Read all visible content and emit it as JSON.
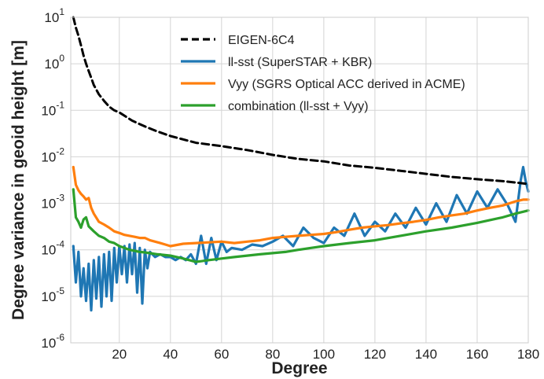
{
  "chart_data": {
    "type": "line",
    "xlabel": "Degree",
    "ylabel": "Degree variance in geoid height [m]",
    "xlim": [
      1,
      180
    ],
    "ylim": [
      1e-06,
      10
    ],
    "yscale": "log",
    "grid": true,
    "legend_placement": "top-center",
    "x_ticks": [
      "20",
      "40",
      "60",
      "80",
      "100",
      "120",
      "140",
      "160",
      "180"
    ],
    "y_ticks": [
      {
        "base": "10",
        "exp": "-6"
      },
      {
        "base": "10",
        "exp": "-5"
      },
      {
        "base": "10",
        "exp": "-4"
      },
      {
        "base": "10",
        "exp": "-3"
      },
      {
        "base": "10",
        "exp": "-2"
      },
      {
        "base": "10",
        "exp": "-1"
      },
      {
        "base": "10",
        "exp": "0"
      },
      {
        "base": "10",
        "exp": "1"
      }
    ],
    "series": [
      {
        "name": "EIGEN-6C4",
        "color": "#000000",
        "style": "dashed",
        "x": [
          2,
          3,
          4,
          5,
          6,
          7,
          8,
          9,
          10,
          12,
          14,
          16,
          18,
          20,
          25,
          30,
          35,
          40,
          50,
          60,
          70,
          80,
          90,
          100,
          110,
          120,
          130,
          140,
          150,
          160,
          170,
          175,
          180
        ],
        "y": [
          10,
          6,
          4,
          2.5,
          1.5,
          1.0,
          0.7,
          0.5,
          0.35,
          0.22,
          0.16,
          0.12,
          0.1,
          0.09,
          0.06,
          0.045,
          0.035,
          0.028,
          0.02,
          0.017,
          0.014,
          0.011,
          0.009,
          0.008,
          0.0065,
          0.0058,
          0.005,
          0.0043,
          0.0037,
          0.0033,
          0.003,
          0.0028,
          0.0026
        ]
      },
      {
        "name": "ll-sst (SuperSTAR + KBR)",
        "color": "#1f77b4",
        "style": "solid",
        "x": [
          2,
          3,
          4,
          5,
          6,
          7,
          8,
          9,
          10,
          11,
          12,
          13,
          14,
          15,
          16,
          17,
          18,
          19,
          20,
          21,
          22,
          23,
          24,
          25,
          26,
          27,
          28,
          29,
          30,
          31,
          32,
          34,
          36,
          38,
          40,
          42,
          44,
          46,
          48,
          50,
          52,
          54,
          56,
          58,
          60,
          62,
          64,
          68,
          72,
          76,
          80,
          84,
          88,
          92,
          96,
          100,
          104,
          108,
          112,
          116,
          120,
          124,
          128,
          132,
          136,
          140,
          144,
          148,
          152,
          156,
          160,
          164,
          168,
          172,
          175,
          177,
          178,
          179,
          180
        ],
        "y": [
          0.00012,
          2e-05,
          9e-05,
          1e-05,
          4e-05,
          8e-06,
          5e-05,
          5e-06,
          6e-05,
          9e-06,
          7e-05,
          6e-06,
          8e-05,
          1e-05,
          9e-05,
          8e-06,
          0.00011,
          2e-05,
          0.00012,
          3e-05,
          0.00012,
          2e-05,
          0.00013,
          3e-05,
          0.00014,
          1.2e-05,
          0.00011,
          7e-06,
          0.0001,
          4e-05,
          9e-05,
          7e-05,
          8e-05,
          7e-05,
          7e-05,
          6e-05,
          7e-05,
          6e-05,
          8e-05,
          5e-05,
          0.0002,
          5e-05,
          0.00018,
          6e-05,
          0.00015,
          9e-05,
          0.00011,
          0.0001,
          0.00013,
          0.00012,
          0.00015,
          0.0002,
          0.00012,
          0.0003,
          0.00018,
          0.00014,
          0.0003,
          0.0002,
          0.0006,
          0.0002,
          0.0004,
          0.00025,
          0.0006,
          0.0003,
          0.0008,
          0.00035,
          0.001,
          0.0004,
          0.0015,
          0.0006,
          0.0018,
          0.0008,
          0.002,
          0.0009,
          0.0004,
          0.003,
          0.006,
          0.003,
          0.0018
        ]
      },
      {
        "name": "Vyy (SGRS Optical ACC derived in ACME)",
        "color": "#ff7f0e",
        "style": "solid",
        "x": [
          2,
          3,
          4,
          5,
          6,
          7,
          8,
          9,
          10,
          12,
          14,
          16,
          18,
          20,
          22,
          24,
          26,
          28,
          30,
          32,
          34,
          36,
          38,
          40,
          45,
          50,
          55,
          60,
          65,
          70,
          75,
          80,
          85,
          90,
          95,
          100,
          105,
          110,
          115,
          120,
          125,
          130,
          135,
          140,
          145,
          150,
          155,
          160,
          165,
          170,
          175,
          178,
          180
        ],
        "y": [
          0.006,
          0.0025,
          0.0019,
          0.0016,
          0.0014,
          0.0012,
          0.0013,
          0.0008,
          0.0006,
          0.0004,
          0.00035,
          0.0003,
          0.00025,
          0.00023,
          0.00021,
          0.0002,
          0.00019,
          0.00018,
          0.00018,
          0.00016,
          0.00015,
          0.00014,
          0.00013,
          0.00012,
          0.000135,
          0.00014,
          0.000145,
          0.00015,
          0.00014,
          0.00015,
          0.00016,
          0.00018,
          0.00019,
          0.0002,
          0.00021,
          0.00022,
          0.00024,
          0.00027,
          0.0003,
          0.00032,
          0.00034,
          0.00037,
          0.0004,
          0.00044,
          0.0005,
          0.00055,
          0.0006,
          0.0007,
          0.0008,
          0.0009,
          0.0011,
          0.0012,
          0.0012
        ]
      },
      {
        "name": "combination (ll-sst + Vyy)",
        "color": "#2ca02c",
        "style": "solid",
        "x": [
          2,
          3,
          4,
          5,
          6,
          7,
          8,
          10,
          12,
          14,
          16,
          18,
          20,
          22,
          24,
          26,
          28,
          30,
          35,
          40,
          45,
          50,
          55,
          60,
          65,
          70,
          75,
          80,
          85,
          90,
          95,
          100,
          110,
          120,
          130,
          140,
          150,
          160,
          170,
          175,
          180
        ],
        "y": [
          0.002,
          0.0005,
          0.0004,
          0.0003,
          0.00045,
          0.0005,
          0.00032,
          0.00025,
          0.0002,
          0.00018,
          0.00015,
          0.00014,
          0.00012,
          0.00011,
          0.0001,
          9.5e-05,
          9e-05,
          8.8e-05,
          8e-05,
          7.5e-05,
          6.5e-05,
          5.5e-05,
          6e-05,
          6.5e-05,
          7e-05,
          7.5e-05,
          8e-05,
          8.5e-05,
          9e-05,
          0.0001,
          0.00011,
          0.00012,
          0.00014,
          0.00016,
          0.0002,
          0.00025,
          0.0003,
          0.00038,
          0.0005,
          0.0006,
          0.0007
        ]
      }
    ]
  }
}
